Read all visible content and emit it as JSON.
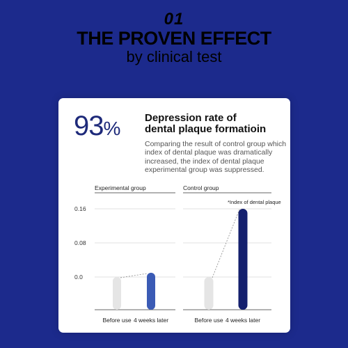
{
  "header": {
    "number": "01",
    "title": "THE PROVEN EFFECT",
    "subtitle": "by clinical test"
  },
  "card": {
    "percent_value": "93",
    "percent_sign": "%",
    "headline_line1": "Depression rate of",
    "headline_line2": "dental plaque formatioin",
    "desc_lines": [
      "Comparing the result of control group which",
      "index of dental plaque was dramatically",
      "increased, the index of dental plaque",
      "experimental group was suppressed."
    ]
  },
  "colors": {
    "background": "#1c2a8c",
    "experimental_after": "#3b5bb5",
    "control_after": "#14206e",
    "before": "#e5e5e5"
  },
  "chart_data": {
    "type": "bar",
    "ylim": [
      0,
      0.16
    ],
    "yticks": [
      "0.16",
      "0.08",
      "0.0"
    ],
    "legend": "*Index of dental plaque",
    "groups": [
      {
        "name": "Experimental group",
        "categories": [
          "Before use",
          "4 weeks later"
        ],
        "values": [
          0.0,
          0.01
        ]
      },
      {
        "name": "Control group",
        "categories": [
          "Before use",
          "4 weeks later"
        ],
        "values": [
          0.0,
          0.16
        ]
      }
    ]
  }
}
